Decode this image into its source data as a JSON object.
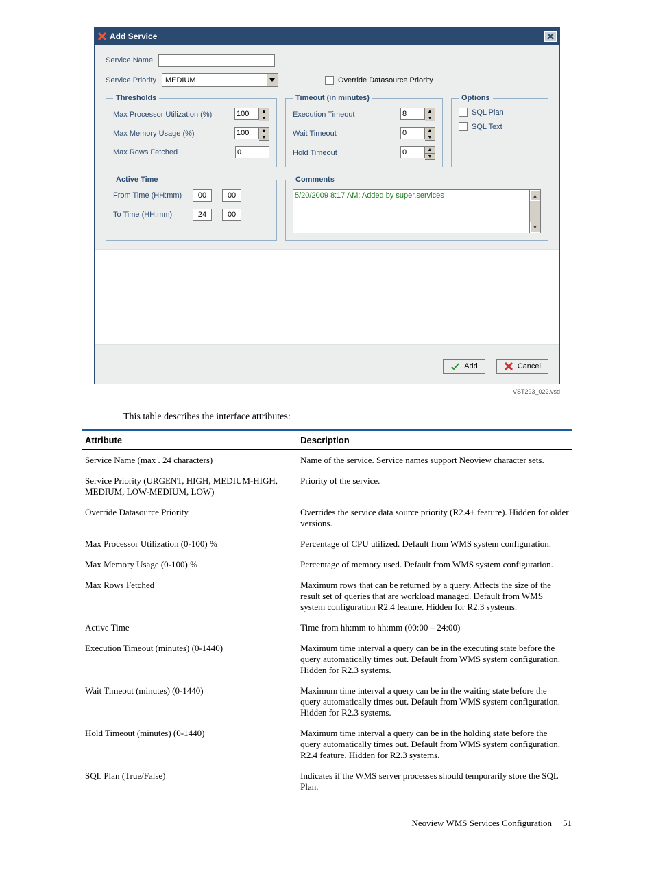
{
  "dialog": {
    "title": "Add Service",
    "serviceNameLabel": "Service Name",
    "serviceNameValue": "",
    "priorityLabel": "Service Priority",
    "priorityValue": "MEDIUM",
    "overrideLabel": "Override Datasource Priority",
    "thresholds": {
      "legend": "Thresholds",
      "maxCpuLabel": "Max Processor Utilization (%)",
      "maxCpuValue": "100",
      "maxMemLabel": "Max Memory Usage (%)",
      "maxMemValue": "100",
      "maxRowsLabel": "Max Rows Fetched",
      "maxRowsValue": "0"
    },
    "timeouts": {
      "legend": "Timeout (in minutes)",
      "execLabel": "Execution Timeout",
      "execValue": "8",
      "waitLabel": "Wait Timeout",
      "waitValue": "0",
      "holdLabel": "Hold Timeout",
      "holdValue": "0"
    },
    "options": {
      "legend": "Options",
      "sqlPlanLabel": "SQL Plan",
      "sqlTextLabel": "SQL Text"
    },
    "activeTime": {
      "legend": "Active Time",
      "fromLabel": "From Time (HH:mm)",
      "fromHH": "00",
      "fromMM": "00",
      "toLabel": "To Time (HH:mm)",
      "toHH": "24",
      "toMM": "00"
    },
    "comments": {
      "legend": "Comments",
      "text": "5/20/2009 8:17 AM: Added by super.services"
    },
    "addBtn": "Add",
    "cancelBtn": "Cancel"
  },
  "vsdCaption": "VST293_022.vsd",
  "introText": "This table describes the interface attributes:",
  "table": {
    "colAttr": "Attribute",
    "colDesc": "Description",
    "rows": [
      {
        "a": "Service Name (max . 24 characters)",
        "d": "Name of the service. Service names support Neoview character sets."
      },
      {
        "a": "Service Priority (URGENT, HIGH, MEDIUM-HIGH, MEDIUM, LOW-MEDIUM, LOW)",
        "d": "Priority of the service."
      },
      {
        "a": "Override Datasource Priority",
        "d": "Overrides the service data source priority (R2.4+ feature). Hidden for older versions."
      },
      {
        "a": "Max Processor Utilization (0-100) %",
        "d": "Percentage of CPU utilized. Default from WMS system configuration."
      },
      {
        "a": "Max Memory Usage (0-100) %",
        "d": "Percentage of memory used. Default from WMS system configuration."
      },
      {
        "a": "Max Rows Fetched",
        "d": "Maximum rows that can be returned by a query. Affects the size of the result set of queries that are workload managed. Default from WMS system configuration R2.4 feature. Hidden for R2.3 systems."
      },
      {
        "a": "Active Time",
        "d": "Time from hh:mm to hh:mm (00:00 – 24:00)"
      },
      {
        "a": "Execution Timeout (minutes) (0-1440)",
        "d": "Maximum time interval a query can be in the executing state before the query automatically times out. Default from WMS system configuration. Hidden for R2.3 systems."
      },
      {
        "a": "Wait Timeout (minutes) (0-1440)",
        "d": "Maximum time interval a query can be in the waiting state before the query automatically times out. Default from WMS system configuration. Hidden for R2.3 systems."
      },
      {
        "a": "Hold Timeout (minutes) (0-1440)",
        "d": "Maximum time interval a query can be in the holding state before the query automatically times out. Default from WMS system configuration. R2.4 feature. Hidden for R2.3 systems."
      },
      {
        "a": "SQL Plan (True/False)",
        "d": "Indicates if the WMS server processes should temporarily store the SQL Plan."
      }
    ]
  },
  "footer": {
    "section": "Neoview WMS Services Configuration",
    "page": "51"
  }
}
